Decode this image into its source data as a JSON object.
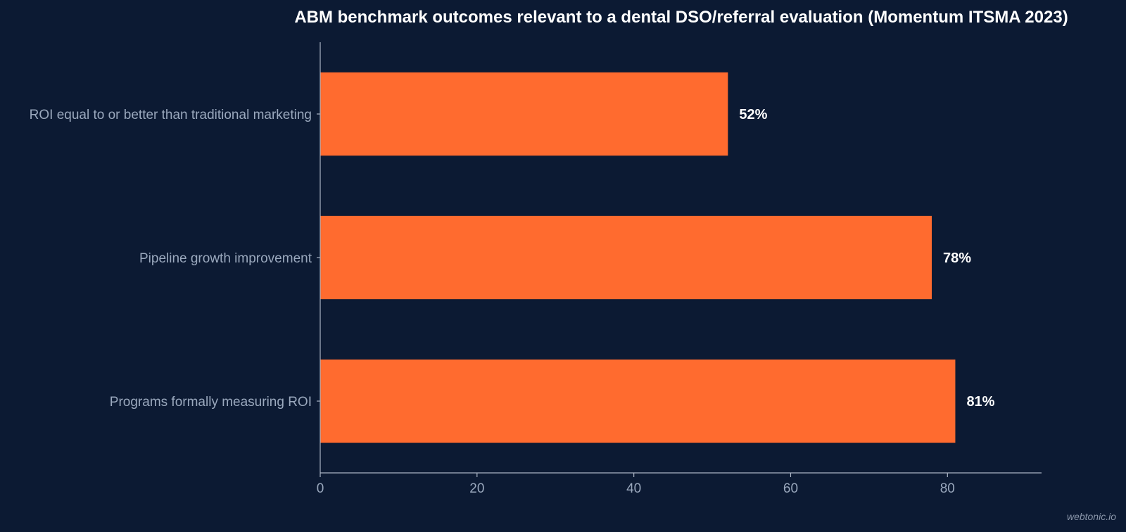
{
  "chart_data": {
    "type": "bar",
    "orientation": "horizontal",
    "title": "ABM benchmark outcomes relevant to a dental DSO/referral evaluation (Momentum ITSMA 2023)",
    "categories": [
      "ROI equal to or better than traditional marketing",
      "Pipeline growth improvement",
      "Programs formally measuring ROI"
    ],
    "values": [
      52,
      78,
      81
    ],
    "value_labels": [
      "52%",
      "78%",
      "81%"
    ],
    "xlim": [
      0,
      92
    ],
    "xticks": [
      0,
      20,
      40,
      60,
      80
    ],
    "xlabel": "",
    "ylabel": "",
    "grid": false,
    "legend": "none"
  },
  "colors": {
    "background": "#0c1a33",
    "bar": "#ff6b2f",
    "axis": "#aab4c4",
    "label": "#9aa8bd",
    "title": "#ffffff"
  },
  "watermark": "webtonic.io"
}
